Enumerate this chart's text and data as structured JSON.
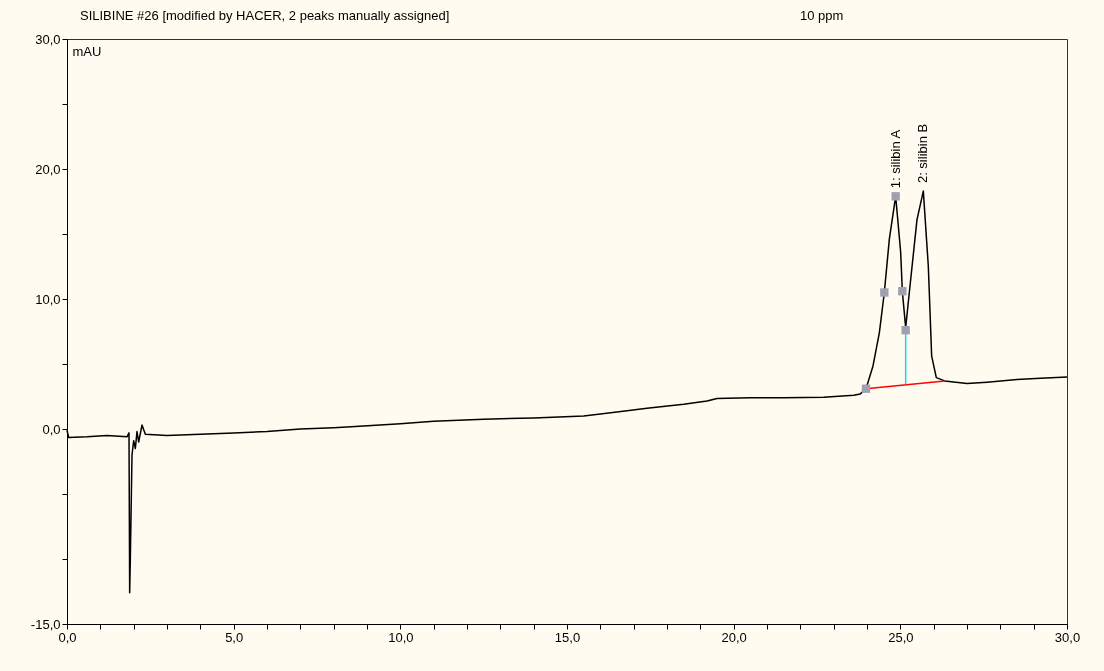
{
  "chart_data": {
    "type": "line",
    "title": "SILIBINE #26 [modified by HACER, 2 peaks manually assigned]",
    "ylabel": "mAU",
    "annotations": [
      "10 ppm",
      {
        "text": "1: silibin A",
        "x": 24.86,
        "y": 17.9
      },
      {
        "text": "2: silibin B",
        "x": 25.69,
        "y": 18.3
      }
    ],
    "xlim": [
      0,
      30
    ],
    "xticks": [
      {
        "value": 0,
        "label": "0,0"
      },
      {
        "value": 1,
        "label": null
      },
      {
        "value": 2,
        "label": null
      },
      {
        "value": 3,
        "label": null
      },
      {
        "value": 4,
        "label": null
      },
      {
        "value": 5,
        "label": "5,0"
      },
      {
        "value": 6,
        "label": null
      },
      {
        "value": 7,
        "label": null
      },
      {
        "value": 8,
        "label": null
      },
      {
        "value": 9,
        "label": null
      },
      {
        "value": 10,
        "label": "10,0"
      },
      {
        "value": 11,
        "label": null
      },
      {
        "value": 12,
        "label": null
      },
      {
        "value": 13,
        "label": null
      },
      {
        "value": 14,
        "label": null
      },
      {
        "value": 15,
        "label": "15,0"
      },
      {
        "value": 16,
        "label": null
      },
      {
        "value": 17,
        "label": null
      },
      {
        "value": 18,
        "label": null
      },
      {
        "value": 19,
        "label": null
      },
      {
        "value": 20,
        "label": "20,0"
      },
      {
        "value": 21,
        "label": null
      },
      {
        "value": 22,
        "label": null
      },
      {
        "value": 23,
        "label": null
      },
      {
        "value": 24,
        "label": null
      },
      {
        "value": 25,
        "label": "25,0"
      },
      {
        "value": 26,
        "label": null
      },
      {
        "value": 27,
        "label": null
      },
      {
        "value": 28,
        "label": null
      },
      {
        "value": 29,
        "label": null
      },
      {
        "value": 30,
        "label": "30,0"
      }
    ],
    "ylim": [
      -15,
      30
    ],
    "yticks": [
      {
        "value": -15,
        "label": "-15,0"
      },
      {
        "value": -10,
        "label": null
      },
      {
        "value": -5,
        "label": null
      },
      {
        "value": 0,
        "label": "0,0"
      },
      {
        "value": 5,
        "label": null
      },
      {
        "value": 10,
        "label": "10,0"
      },
      {
        "value": 15,
        "label": null
      },
      {
        "value": 20,
        "label": "20,0"
      },
      {
        "value": 25,
        "label": null
      },
      {
        "value": 30,
        "label": "30,0"
      }
    ],
    "series": [
      {
        "type": "line",
        "color": "#000000",
        "x": [
          0,
          0.05,
          0.6,
          1.2,
          1.8,
          1.86,
          1.88,
          1.9,
          1.95,
          2.0,
          2.05,
          2.1,
          2.15,
          2.25,
          2.35,
          3,
          4,
          5,
          6,
          7,
          8,
          8.65,
          10,
          11,
          12.5,
          14,
          15.5,
          16.5,
          17.4,
          18.5,
          19.2,
          19.5,
          20.5,
          21.5,
          22.7,
          23.6,
          23.8,
          23.97,
          24.18,
          24.37,
          24.52,
          24.67,
          24.86,
          25.01,
          25.06,
          25.16,
          25.3,
          25.5,
          25.69,
          25.84,
          25.94,
          26.08,
          26.33,
          27,
          27.6,
          28.5,
          29.2,
          30
        ],
        "values": [
          -0.1,
          -0.65,
          -0.6,
          -0.5,
          -0.6,
          -0.3,
          -12.6,
          -10,
          -2,
          -0.9,
          -1.5,
          -0.2,
          -1.0,
          0.3,
          -0.4,
          -0.5,
          -0.4,
          -0.3,
          -0.2,
          0,
          0.1,
          0.2,
          0.4,
          0.6,
          0.75,
          0.85,
          1.0,
          1.3,
          1.6,
          1.9,
          2.15,
          2.35,
          2.4,
          2.4,
          2.45,
          2.6,
          2.7,
          3.1,
          4.85,
          7.4,
          10.5,
          14.6,
          17.9,
          13.6,
          10.6,
          7.8,
          11.25,
          16.1,
          18.3,
          12.5,
          5.6,
          3.95,
          3.7,
          3.5,
          3.6,
          3.8,
          3.9,
          4.0
        ]
      },
      {
        "type": "line",
        "color": "#ff0000",
        "x": [
          23.97,
          26.33
        ],
        "values": [
          3.1,
          3.7
        ]
      },
      {
        "type": "line",
        "color": "#00e0e0",
        "x": [
          25.16,
          25.16
        ],
        "values": [
          3.44,
          7.6
        ]
      },
      {
        "type": "scatter",
        "color": "#a0a0b0",
        "marker": "square",
        "x": [
          23.97,
          24.52,
          24.86,
          25.06,
          25.16
        ],
        "values": [
          3.1,
          10.5,
          17.9,
          10.6,
          7.6
        ]
      }
    ]
  }
}
